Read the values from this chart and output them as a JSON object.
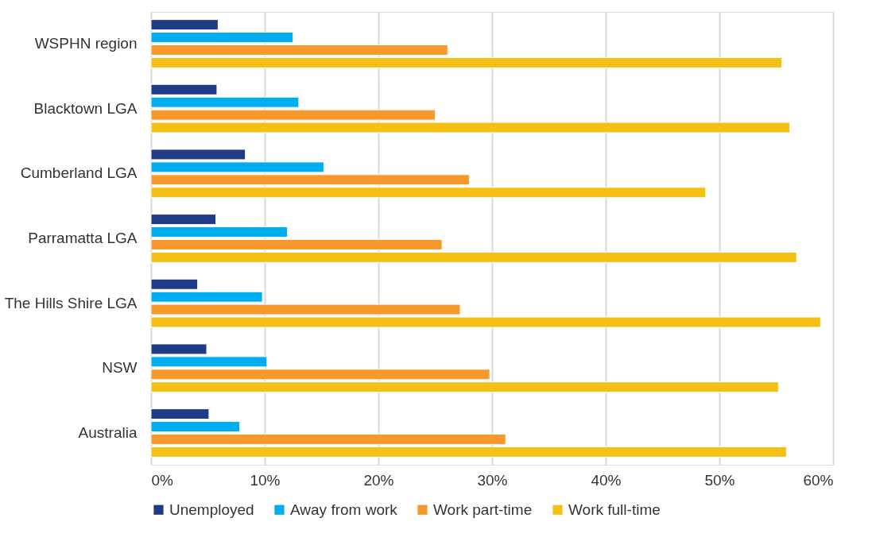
{
  "chart_data": {
    "type": "bar",
    "orientation": "horizontal",
    "categories": [
      "WSPHN region",
      "Blacktown LGA",
      "Cumberland LGA",
      "Parramatta LGA",
      "The Hills Shire LGA",
      "NSW",
      "Australia"
    ],
    "series": [
      {
        "name": "Unemployed",
        "color": "#1f3a87",
        "values": [
          5.9,
          5.8,
          8.3,
          5.7,
          4.1,
          4.9,
          5.1
        ]
      },
      {
        "name": "Away from work",
        "color": "#00aeef",
        "values": [
          12.5,
          13.0,
          15.2,
          12.0,
          9.8,
          10.2,
          7.8
        ]
      },
      {
        "name": "Work part-time",
        "color": "#f7992a",
        "values": [
          26.1,
          25.0,
          28.0,
          25.6,
          27.2,
          29.8,
          31.2
        ]
      },
      {
        "name": "Work full-time",
        "color": "#f5c016",
        "values": [
          55.5,
          56.2,
          48.8,
          56.8,
          58.9,
          55.2,
          55.9
        ]
      }
    ],
    "xlim": [
      0,
      60
    ],
    "xticks": [
      {
        "value": 0,
        "label": "0%"
      },
      {
        "value": 10,
        "label": "10%"
      },
      {
        "value": 20,
        "label": "20%"
      },
      {
        "value": 30,
        "label": "30%"
      },
      {
        "value": 40,
        "label": "40%"
      },
      {
        "value": 50,
        "label": "50%"
      },
      {
        "value": 60,
        "label": "60%"
      }
    ],
    "grid": "x",
    "legend": "bottom"
  }
}
